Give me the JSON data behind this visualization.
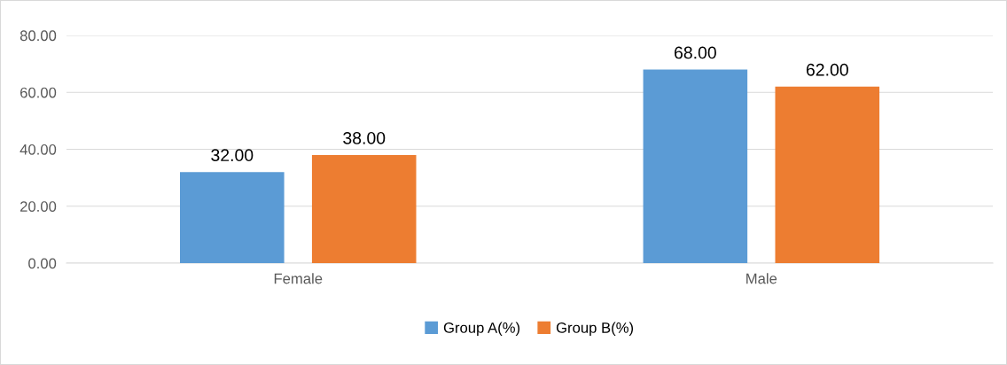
{
  "chart_data": {
    "type": "bar",
    "categories": [
      "Female",
      "Male"
    ],
    "series": [
      {
        "name": "Group A(%)",
        "color": "#5b9bd5",
        "values": [
          32,
          68
        ],
        "value_labels": [
          "32.00",
          "68.00"
        ]
      },
      {
        "name": "Group B(%)",
        "color": "#ed7d31",
        "values": [
          38,
          62
        ],
        "value_labels": [
          "38.00",
          "62.00"
        ]
      }
    ],
    "ylim": [
      0,
      80
    ],
    "yticks": [
      {
        "value": 0,
        "label": "0.00"
      },
      {
        "value": 20,
        "label": "20.00"
      },
      {
        "value": 40,
        "label": "40.00"
      },
      {
        "value": 60,
        "label": "60.00"
      },
      {
        "value": 80,
        "label": "80.00"
      }
    ],
    "grid": "y",
    "legend": "bottom"
  }
}
